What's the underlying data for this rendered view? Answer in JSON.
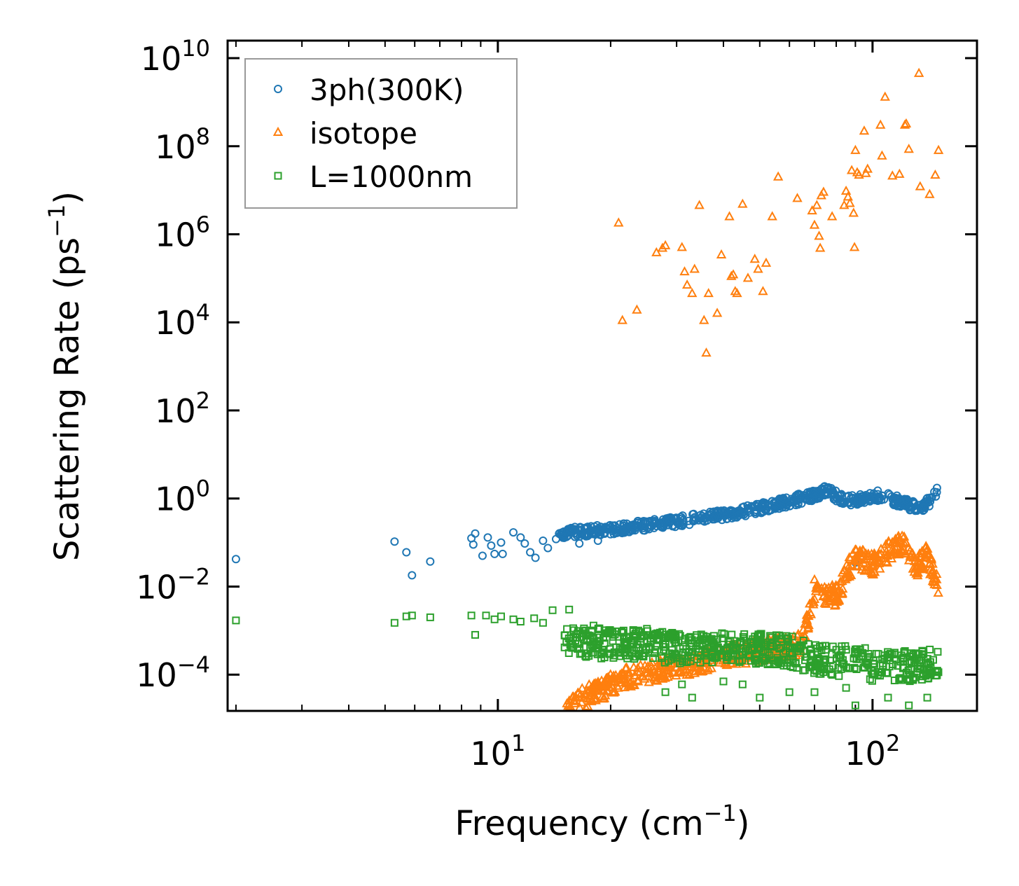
{
  "chart_data": {
    "type": "scatter",
    "xscale": "log",
    "yscale": "log",
    "xlim": [
      1.9,
      190
    ],
    "ylim": [
      1.5e-05,
      25000000000.0
    ],
    "xlabel": "Frequency (cm",
    "xlabel_sup": "−1",
    "xlabel_end": ")",
    "ylabel": "Scattering Rate (ps",
    "ylabel_sup": "−1",
    "ylabel_end": ")",
    "xticks": [
      {
        "value": 10,
        "base": "10",
        "exp": "1"
      },
      {
        "value": 100,
        "base": "10",
        "exp": "2"
      }
    ],
    "yticks": [
      {
        "value": 0.0001,
        "base": "10",
        "exp": "−4"
      },
      {
        "value": 0.01,
        "base": "10",
        "exp": "−2"
      },
      {
        "value": 1,
        "base": "10",
        "exp": "0"
      },
      {
        "value": 100.0,
        "base": "10",
        "exp": "2"
      },
      {
        "value": 10000.0,
        "base": "10",
        "exp": "4"
      },
      {
        "value": 1000000.0,
        "base": "10",
        "exp": "6"
      },
      {
        "value": 100000000.0,
        "base": "10",
        "exp": "8"
      },
      {
        "value": 10000000000.0,
        "base": "10",
        "exp": "10"
      }
    ],
    "legend": {
      "location": "upper-left"
    },
    "series": [
      {
        "name": "3ph(300K)",
        "marker": "circle",
        "color": "#1f77b4",
        "points": [
          [
            2.0,
            0.042
          ],
          [
            5.3,
            0.105
          ],
          [
            5.7,
            0.06
          ],
          [
            5.9,
            0.018
          ],
          [
            6.6,
            0.037
          ],
          [
            8.5,
            0.125
          ],
          [
            8.7,
            0.16
          ],
          [
            8.6,
            0.09
          ],
          [
            9.1,
            0.05
          ],
          [
            9.4,
            0.13
          ],
          [
            9.6,
            0.085
          ],
          [
            9.8,
            0.055
          ],
          [
            10.2,
            0.1
          ],
          [
            10.3,
            0.055
          ],
          [
            11.0,
            0.17
          ],
          [
            11.5,
            0.13
          ],
          [
            11.8,
            0.095
          ],
          [
            12.2,
            0.06
          ],
          [
            12.6,
            0.045
          ],
          [
            13.2,
            0.11
          ],
          [
            13.6,
            0.075
          ],
          [
            14.3,
            0.12
          ],
          [
            16.5,
            0.095
          ],
          [
            18.5,
            0.11
          ],
          [
            21.0,
            0.17
          ],
          [
            90.0,
            0.035
          ]
        ],
        "trend": [
          [
            14.5,
            0.16
          ],
          [
            20,
            0.2
          ],
          [
            30,
            0.3
          ],
          [
            45,
            0.5
          ],
          [
            60,
            0.85
          ],
          [
            70,
            1.2
          ],
          [
            75,
            1.5
          ],
          [
            85,
            0.9
          ],
          [
            95,
            0.95
          ],
          [
            105,
            1.2
          ],
          [
            120,
            0.8
          ],
          [
            135,
            0.6
          ],
          [
            148,
            1.2
          ],
          [
            150,
            2.5
          ]
        ]
      },
      {
        "name": "isotope",
        "marker": "triangle",
        "color": "#ff7f0e",
        "points": [
          [
            21.0,
            1800000.0
          ],
          [
            21.5,
            11000.0
          ],
          [
            23.5,
            19000.0
          ],
          [
            26.5,
            380000.0
          ],
          [
            27.5,
            480000.0
          ],
          [
            28,
            550000.0
          ],
          [
            31,
            500000.0
          ],
          [
            31.5,
            140000.0
          ],
          [
            32,
            70000.0
          ],
          [
            33,
            45000.0
          ],
          [
            33.5,
            160000.0
          ],
          [
            34.5,
            4500000.0
          ],
          [
            35.5,
            11000.0
          ],
          [
            36,
            2000.0
          ],
          [
            36.5,
            45000.0
          ],
          [
            38.5,
            16000.0
          ],
          [
            39.5,
            340000.0
          ],
          [
            41.5,
            2500000.0
          ],
          [
            42,
            110000.0
          ],
          [
            42.5,
            120000.0
          ],
          [
            43,
            50000.0
          ],
          [
            43.5,
            45000.0
          ],
          [
            45,
            4800000.0
          ],
          [
            46.5,
            100000.0
          ],
          [
            48.5,
            270000.0
          ],
          [
            49.5,
            160000.0
          ],
          [
            51,
            50000.0
          ],
          [
            52,
            220000.0
          ],
          [
            54,
            2500000.0
          ],
          [
            56,
            20000000.0
          ],
          [
            63,
            6500000.0
          ],
          [
            69,
            3400000.0
          ],
          [
            70,
            1600000.0
          ],
          [
            71,
            4500000.0
          ],
          [
            72,
            900000.0
          ],
          [
            72.5,
            480000.0
          ],
          [
            73,
            7500000.0
          ],
          [
            74,
            9000000.0
          ],
          [
            78,
            2500000.0
          ],
          [
            84,
            4500000.0
          ],
          [
            85,
            9500000.0
          ],
          [
            86,
            7000000.0
          ],
          [
            87,
            5000000.0
          ],
          [
            88,
            28000000.0
          ],
          [
            89,
            3000000.0
          ],
          [
            89.5,
            500000.0
          ],
          [
            90,
            80000000.0
          ],
          [
            91,
            25000000.0
          ],
          [
            92,
            22000000.0
          ],
          [
            95,
            220000000.0
          ],
          [
            96,
            24000000.0
          ],
          [
            97,
            30000000.0
          ],
          [
            105,
            300000000.0
          ],
          [
            106,
            60000000.0
          ],
          [
            108,
            1300000000.0
          ],
          [
            113,
            21000000.0
          ],
          [
            118,
            23000000.0
          ],
          [
            122,
            300000000.0
          ],
          [
            123,
            320000000.0
          ],
          [
            125,
            85000000.0
          ],
          [
            133,
            4500000000.0
          ],
          [
            134,
            12000000.0
          ],
          [
            142,
            8000000.0
          ],
          [
            147,
            22000000.0
          ],
          [
            150,
            80000000.0
          ]
        ],
        "trend": [
          [
            15,
            1.5e-05
          ],
          [
            18,
            4e-05
          ],
          [
            22,
            8e-05
          ],
          [
            30,
            0.00015
          ],
          [
            45,
            0.0003
          ],
          [
            65,
            0.0005
          ],
          [
            70,
            0.008
          ],
          [
            80,
            0.006
          ],
          [
            90,
            0.05
          ],
          [
            100,
            0.03
          ],
          [
            110,
            0.06
          ],
          [
            120,
            0.1
          ],
          [
            130,
            0.025
          ],
          [
            140,
            0.05
          ],
          [
            150,
            0.01
          ]
        ]
      },
      {
        "name": "L=1000nm",
        "marker": "square",
        "color": "#2ca02c",
        "points": [
          [
            2.0,
            0.0017
          ],
          [
            5.3,
            0.0015
          ],
          [
            5.7,
            0.0021
          ],
          [
            5.9,
            0.0022
          ],
          [
            6.6,
            0.002
          ],
          [
            8.5,
            0.0022
          ],
          [
            8.7,
            0.0008
          ],
          [
            9.3,
            0.0022
          ],
          [
            9.8,
            0.0018
          ],
          [
            10.2,
            0.0021
          ],
          [
            11.0,
            0.0018
          ],
          [
            11.5,
            0.0016
          ],
          [
            12.5,
            0.0019
          ],
          [
            13.2,
            0.0015
          ],
          [
            14.0,
            0.0029
          ],
          [
            15.5,
            0.003
          ],
          [
            18,
            0.0013
          ],
          [
            25,
            0.0011
          ],
          [
            28,
            4e-05
          ],
          [
            31,
            6e-05
          ],
          [
            33,
            3e-05
          ],
          [
            40,
            7e-05
          ],
          [
            45,
            6e-05
          ],
          [
            50,
            3e-05
          ],
          [
            60,
            4e-05
          ],
          [
            70,
            4e-05
          ],
          [
            85,
            5e-05
          ],
          [
            90,
            2e-05
          ],
          [
            110,
            3e-05
          ],
          [
            125,
            2e-05
          ],
          [
            140,
            3e-05
          ]
        ],
        "trend": [
          [
            15,
            0.0006
          ],
          [
            20,
            0.0005
          ],
          [
            30,
            0.0004
          ],
          [
            45,
            0.0004
          ],
          [
            60,
            0.00035
          ],
          [
            70,
            0.00022
          ],
          [
            80,
            0.0002
          ],
          [
            90,
            0.00025
          ],
          [
            100,
            0.00014
          ],
          [
            115,
            0.00015
          ],
          [
            130,
            0.00016
          ],
          [
            150,
            0.0002
          ]
        ]
      }
    ]
  }
}
